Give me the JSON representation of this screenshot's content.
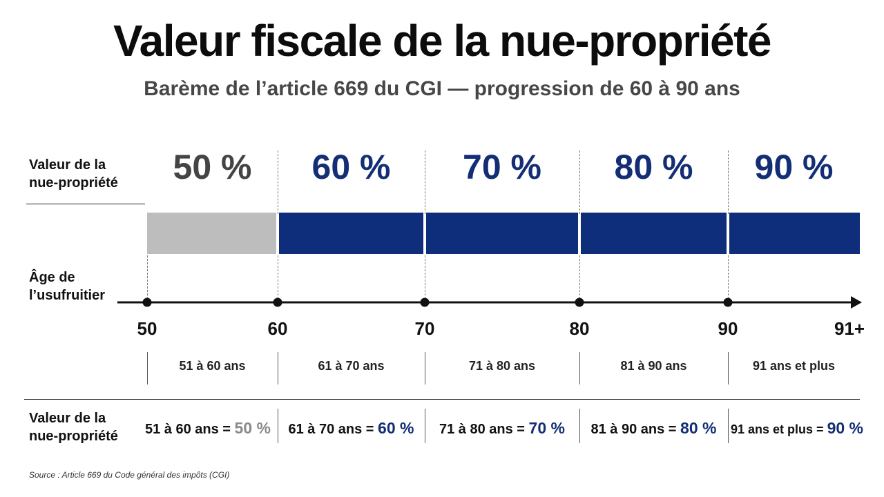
{
  "title": "Valeur fiscale de la nue-propriété",
  "subtitle": "Barème de l’article 669 du CGI — progression de 60 à 90 ans",
  "value_label": [
    "Valeur de la",
    "nue-propriété"
  ],
  "age_label": [
    "Âge de",
    "l’usufruitier"
  ],
  "colors": {
    "grey": "#bdbdbd",
    "grey_text": "#444444",
    "navy": "#0e2d7a",
    "navy_text": "#142e75"
  },
  "bands": [
    {
      "percent_label": "50 %",
      "range": "51 à 60 ans",
      "summary_prefix": "51 à 60 ans = ",
      "summary_value": "50 %",
      "percent": 50,
      "color": "grey"
    },
    {
      "percent_label": "60 %",
      "range": "61 à 70 ans",
      "summary_prefix": "61 à 70 ans = ",
      "summary_value": "60 %",
      "percent": 60,
      "color": "navy"
    },
    {
      "percent_label": "70 %",
      "range": "71 à 80 ans",
      "summary_prefix": "71 à 80 ans = ",
      "summary_value": "70 %",
      "percent": 70,
      "color": "navy"
    },
    {
      "percent_label": "80 %",
      "range": "81 à 90 ans",
      "summary_prefix": "81 à 90 ans = ",
      "summary_value": "80 %",
      "percent": 80,
      "color": "navy"
    },
    {
      "percent_label": "90 %",
      "range": "91 ans et plus",
      "summary_prefix": "91 ans et plus = ",
      "summary_value": "90 %",
      "percent": 90,
      "color": "navy"
    }
  ],
  "axis_ticks": [
    "50",
    "60",
    "70",
    "80",
    "90",
    "91+"
  ],
  "source": "Source : Article 669 du Code général des impôts (CGI)"
}
